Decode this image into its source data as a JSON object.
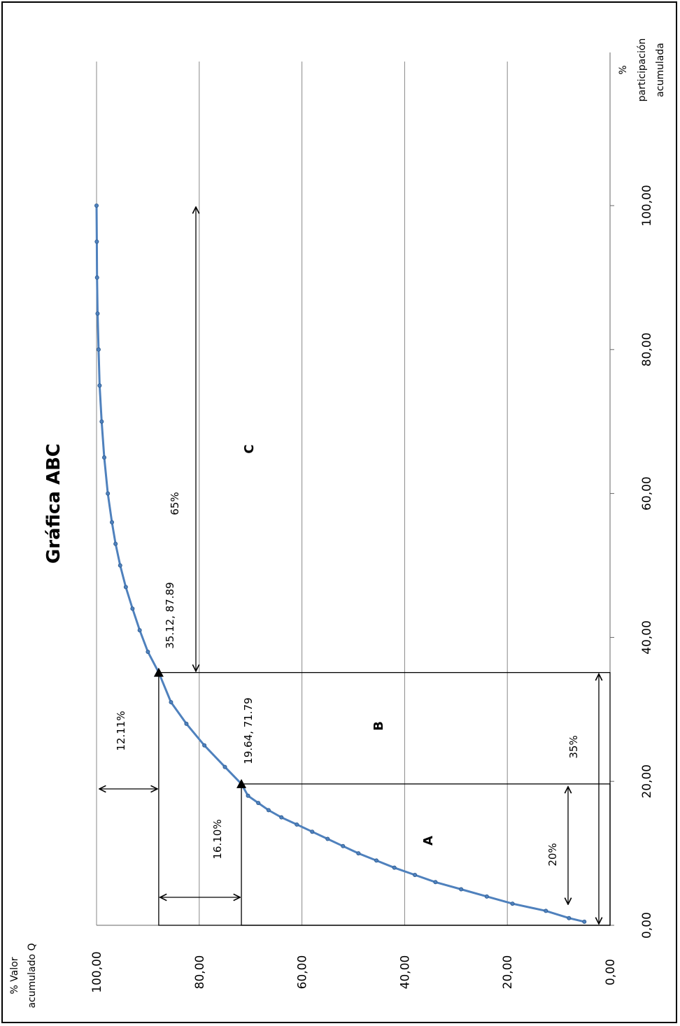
{
  "chart_data": {
    "type": "line",
    "title": "Gráfica ABC",
    "xlabel": "% participación acumulada",
    "ylabel": "% Valor acumulado Q",
    "x_ticks": [
      "0,00",
      "20,00",
      "40,00",
      "60,00",
      "80,00",
      "100,00"
    ],
    "y_ticks": [
      "0,00",
      "20,00",
      "40,00",
      "60,00",
      "80,00",
      "100,00"
    ],
    "xlim": [
      0,
      100
    ],
    "ylim": [
      0,
      100
    ],
    "grid": "horizontal",
    "orientation": "rotated 90° counter-clockwise",
    "series": [
      {
        "color": "#4f81bd",
        "x": [
          0.5,
          1,
          2,
          3,
          4,
          5,
          6,
          7,
          8,
          9,
          10,
          11,
          12,
          13,
          14,
          15,
          16,
          17,
          18,
          19.64,
          22,
          25,
          28,
          31,
          35.12,
          38,
          41,
          44,
          47,
          50,
          53,
          56,
          60,
          65,
          70,
          75,
          80,
          85,
          90,
          95,
          100
        ],
        "y": [
          5,
          8,
          12.5,
          19,
          24,
          29,
          34,
          38,
          42,
          45.5,
          49,
          52,
          55,
          58,
          61,
          64,
          66.5,
          68.5,
          70.5,
          71.79,
          75,
          79,
          82.5,
          85.5,
          87.89,
          90,
          91.6,
          93,
          94.3,
          95.4,
          96.3,
          97,
          97.8,
          98.5,
          99,
          99.4,
          99.6,
          99.8,
          99.9,
          99.95,
          100
        ]
      }
    ],
    "annotations": {
      "point_a": "19.64, 71.79",
      "point_b": "35.12, 87.89",
      "zone_a": "A",
      "zone_b": "B",
      "zone_c": "C",
      "pct_20": "20%",
      "pct_35": "35%",
      "pct_65": "65%",
      "pct_16": "16.10%",
      "pct_12": "12.11%"
    },
    "marker_points": [
      {
        "x": 19.64,
        "y": 71.79
      },
      {
        "x": 35.12,
        "y": 87.89
      }
    ]
  }
}
